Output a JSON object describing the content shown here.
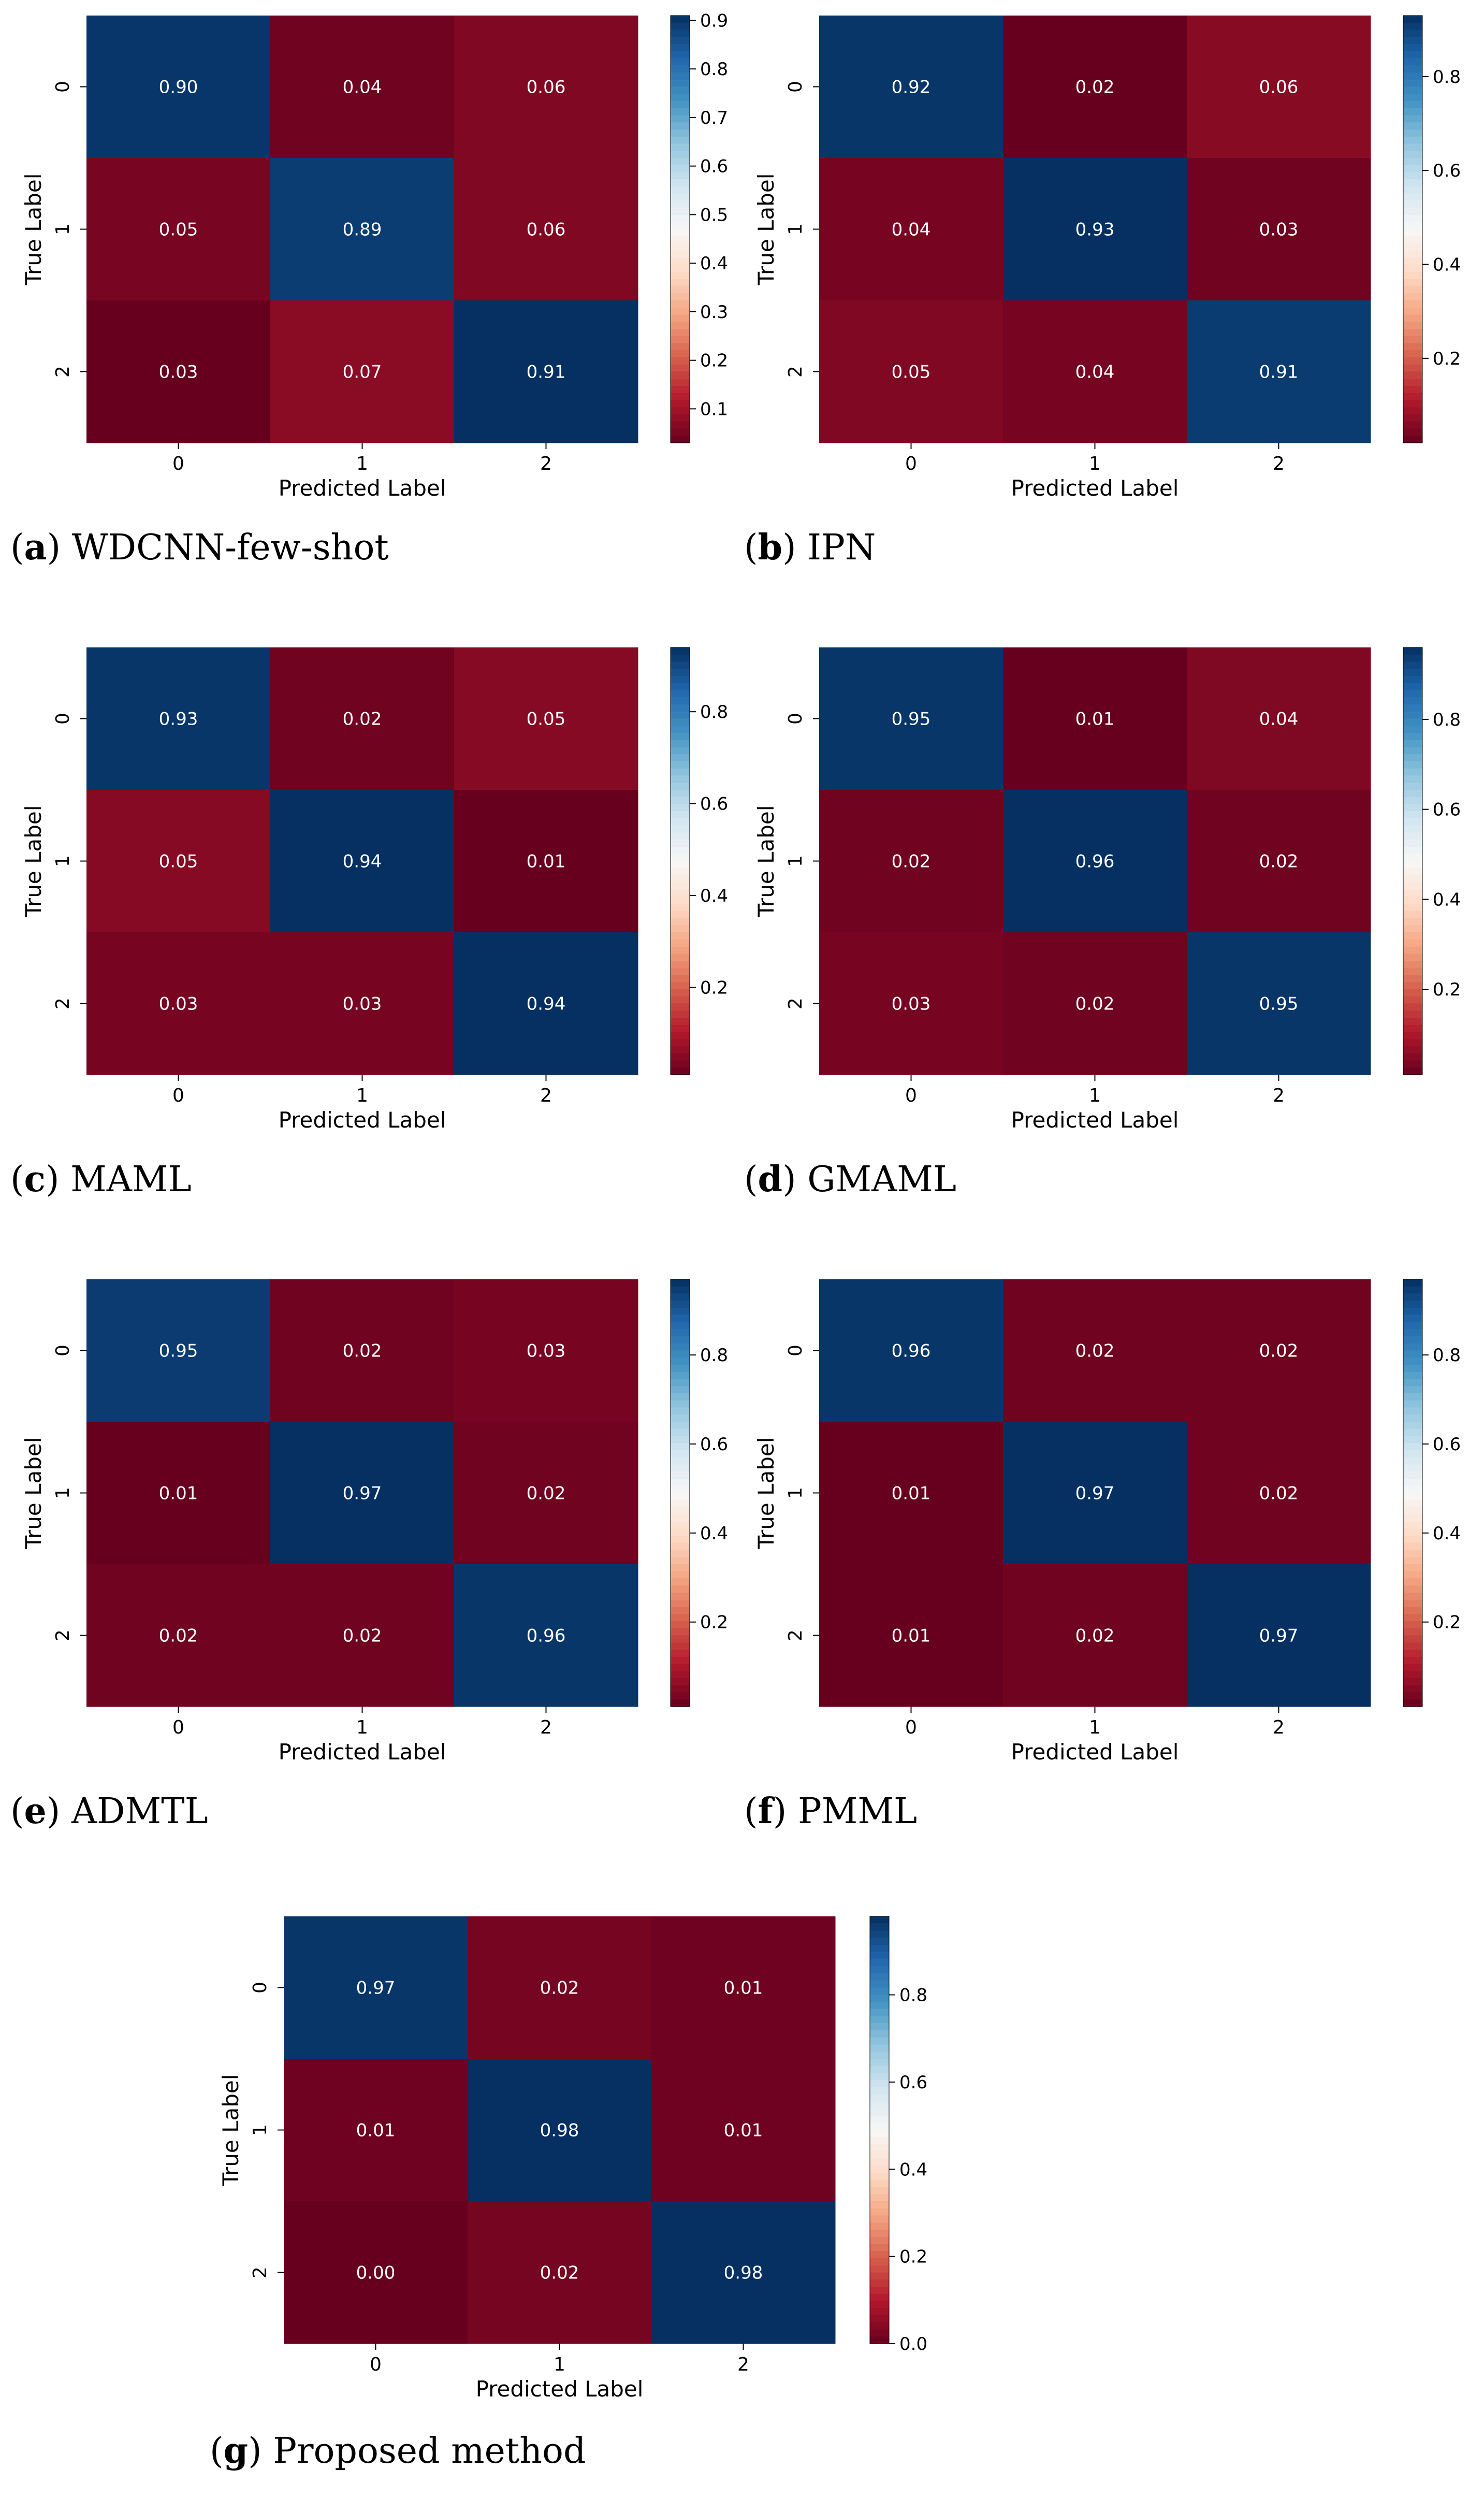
{
  "colormap": {
    "name": "RdBu",
    "stops": [
      "#67001f",
      "#b2182b",
      "#d6604d",
      "#f4a582",
      "#fddbc7",
      "#f7f7f7",
      "#d1e5f0",
      "#92c5de",
      "#4393c3",
      "#2166ac",
      "#053061"
    ]
  },
  "colors": {
    "annotation_text": "#ffffff",
    "axis_text": "#000000"
  },
  "chart_data": [
    {
      "type": "heatmap",
      "id": "a",
      "caption_letter": "a",
      "caption_text": "WDCNN-few-shot",
      "xlabel": "Predicted Label",
      "ylabel": "True Label",
      "x_ticks": [
        "0",
        "1",
        "2"
      ],
      "y_ticks": [
        "0",
        "1",
        "2"
      ],
      "values": [
        [
          0.9,
          0.04,
          0.06
        ],
        [
          0.05,
          0.89,
          0.06
        ],
        [
          0.03,
          0.07,
          0.91
        ]
      ],
      "cell_labels": [
        [
          "0.90",
          "0.04",
          "0.06"
        ],
        [
          "0.05",
          "0.89",
          "0.06"
        ],
        [
          "0.03",
          "0.07",
          "0.91"
        ]
      ],
      "colorbar_range": [
        0.03,
        0.91
      ],
      "colorbar_ticks": [
        "0.1",
        "0.2",
        "0.3",
        "0.4",
        "0.5",
        "0.6",
        "0.7",
        "0.8",
        "0.9"
      ]
    },
    {
      "type": "heatmap",
      "id": "b",
      "caption_letter": "b",
      "caption_text": "IPN",
      "xlabel": "Predicted Label",
      "ylabel": "True Label",
      "x_ticks": [
        "0",
        "1",
        "2"
      ],
      "y_ticks": [
        "0",
        "1",
        "2"
      ],
      "values": [
        [
          0.92,
          0.02,
          0.06
        ],
        [
          0.04,
          0.93,
          0.03
        ],
        [
          0.05,
          0.04,
          0.91
        ]
      ],
      "cell_labels": [
        [
          "0.92",
          "0.02",
          "0.06"
        ],
        [
          "0.04",
          "0.93",
          "0.03"
        ],
        [
          "0.05",
          "0.04",
          "0.91"
        ]
      ],
      "colorbar_range": [
        0.02,
        0.93
      ],
      "colorbar_ticks": [
        "0.2",
        "0.4",
        "0.6",
        "0.8"
      ]
    },
    {
      "type": "heatmap",
      "id": "c",
      "caption_letter": "c",
      "caption_text": "MAML",
      "xlabel": "Predicted Label",
      "ylabel": "True Label",
      "x_ticks": [
        "0",
        "1",
        "2"
      ],
      "y_ticks": [
        "0",
        "1",
        "2"
      ],
      "values": [
        [
          0.93,
          0.02,
          0.05
        ],
        [
          0.05,
          0.94,
          0.01
        ],
        [
          0.03,
          0.03,
          0.94
        ]
      ],
      "cell_labels": [
        [
          "0.93",
          "0.02",
          "0.05"
        ],
        [
          "0.05",
          "0.94",
          "0.01"
        ],
        [
          "0.03",
          "0.03",
          "0.94"
        ]
      ],
      "colorbar_range": [
        0.01,
        0.94
      ],
      "colorbar_ticks": [
        "0.2",
        "0.4",
        "0.6",
        "0.8"
      ]
    },
    {
      "type": "heatmap",
      "id": "d",
      "caption_letter": "d",
      "caption_text": "GMAML",
      "xlabel": "Predicted Label",
      "ylabel": "True Label",
      "x_ticks": [
        "0",
        "1",
        "2"
      ],
      "y_ticks": [
        "0",
        "1",
        "2"
      ],
      "values": [
        [
          0.95,
          0.01,
          0.04
        ],
        [
          0.02,
          0.96,
          0.02
        ],
        [
          0.03,
          0.02,
          0.95
        ]
      ],
      "cell_labels": [
        [
          "0.95",
          "0.01",
          "0.04"
        ],
        [
          "0.02",
          "0.96",
          "0.02"
        ],
        [
          "0.03",
          "0.02",
          "0.95"
        ]
      ],
      "colorbar_range": [
        0.01,
        0.96
      ],
      "colorbar_ticks": [
        "0.2",
        "0.4",
        "0.6",
        "0.8"
      ]
    },
    {
      "type": "heatmap",
      "id": "e",
      "caption_letter": "e",
      "caption_text": "ADMTL",
      "xlabel": "Predicted Label",
      "ylabel": "True Label",
      "x_ticks": [
        "0",
        "1",
        "2"
      ],
      "y_ticks": [
        "0",
        "1",
        "2"
      ],
      "values": [
        [
          0.95,
          0.02,
          0.03
        ],
        [
          0.01,
          0.97,
          0.02
        ],
        [
          0.02,
          0.02,
          0.96
        ]
      ],
      "cell_labels": [
        [
          "0.95",
          "0.02",
          "0.03"
        ],
        [
          "0.01",
          "0.97",
          "0.02"
        ],
        [
          "0.02",
          "0.02",
          "0.96"
        ]
      ],
      "colorbar_range": [
        0.01,
        0.97
      ],
      "colorbar_ticks": [
        "0.2",
        "0.4",
        "0.6",
        "0.8"
      ]
    },
    {
      "type": "heatmap",
      "id": "f",
      "caption_letter": "f",
      "caption_text": "PMML",
      "xlabel": "Predicted Label",
      "ylabel": "True Label",
      "x_ticks": [
        "0",
        "1",
        "2"
      ],
      "y_ticks": [
        "0",
        "1",
        "2"
      ],
      "values": [
        [
          0.96,
          0.02,
          0.02
        ],
        [
          0.01,
          0.97,
          0.02
        ],
        [
          0.01,
          0.02,
          0.97
        ]
      ],
      "cell_labels": [
        [
          "0.96",
          "0.02",
          "0.02"
        ],
        [
          "0.01",
          "0.97",
          "0.02"
        ],
        [
          "0.01",
          "0.02",
          "0.97"
        ]
      ],
      "colorbar_range": [
        0.01,
        0.97
      ],
      "colorbar_ticks": [
        "0.2",
        "0.4",
        "0.6",
        "0.8"
      ]
    },
    {
      "type": "heatmap",
      "id": "g",
      "caption_letter": "g",
      "caption_text": "Proposed method",
      "xlabel": "Predicted Label",
      "ylabel": "True Label",
      "x_ticks": [
        "0",
        "1",
        "2"
      ],
      "y_ticks": [
        "0",
        "1",
        "2"
      ],
      "values": [
        [
          0.97,
          0.02,
          0.01
        ],
        [
          0.01,
          0.98,
          0.01
        ],
        [
          0.0,
          0.02,
          0.98
        ]
      ],
      "cell_labels": [
        [
          "0.97",
          "0.02",
          "0.01"
        ],
        [
          "0.01",
          "0.98",
          "0.01"
        ],
        [
          "0.00",
          "0.02",
          "0.98"
        ]
      ],
      "colorbar_range": [
        0.0,
        0.98
      ],
      "colorbar_ticks": [
        "0.0",
        "0.2",
        "0.4",
        "0.6",
        "0.8"
      ]
    }
  ]
}
